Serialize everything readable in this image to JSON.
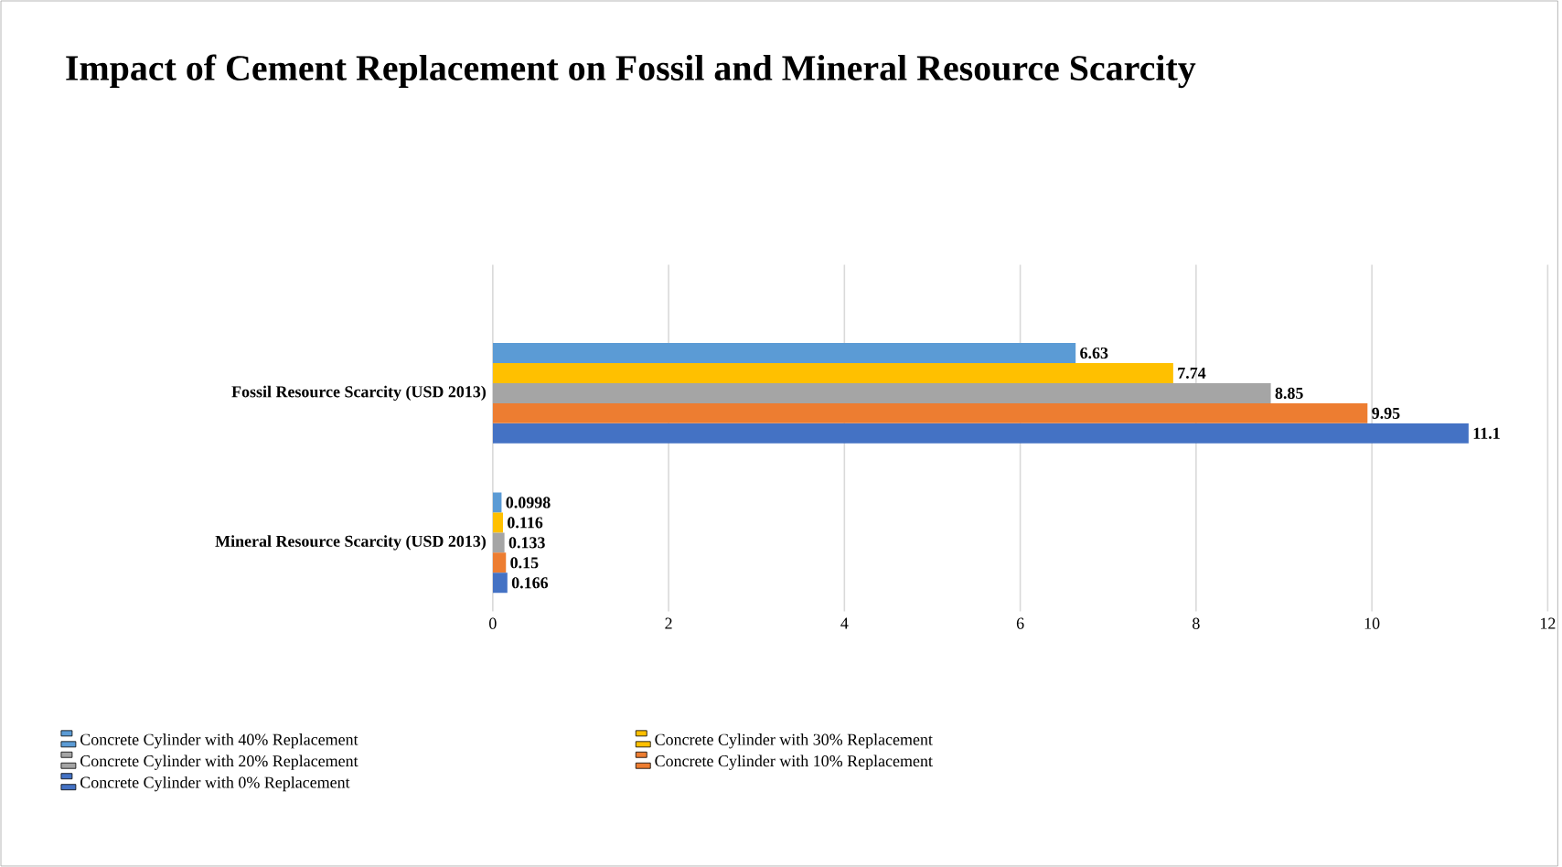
{
  "chart_data": {
    "type": "bar",
    "orientation": "horizontal",
    "title": "Impact of Cement Replacement on Fossil and Mineral Resource Scarcity",
    "categories": [
      "Fossil Resource Scarcity (USD 2013)",
      "Mineral Resource Scarcity (USD 2013)"
    ],
    "series": [
      {
        "name": "Concrete Cylinder with 40% Replacement",
        "color": "#5b9bd5",
        "values": [
          6.63,
          0.0998
        ]
      },
      {
        "name": "Concrete Cylinder with 30% Replacement",
        "color": "#ffc000",
        "values": [
          7.74,
          0.116
        ]
      },
      {
        "name": "Concrete Cylinder with 20% Replacement",
        "color": "#a5a5a5",
        "values": [
          8.85,
          0.133
        ]
      },
      {
        "name": "Concrete Cylinder with 10% Replacement",
        "color": "#ed7d31",
        "values": [
          9.95,
          0.15
        ]
      },
      {
        "name": "Concrete Cylinder with 0% Replacement",
        "color": "#4472c4",
        "values": [
          11.1,
          0.166
        ]
      }
    ],
    "xlim": [
      0,
      12
    ],
    "xticks": [
      0,
      2,
      4,
      6,
      8,
      10,
      12
    ],
    "grid": "x",
    "legend": "bottom",
    "data_labels": true
  }
}
